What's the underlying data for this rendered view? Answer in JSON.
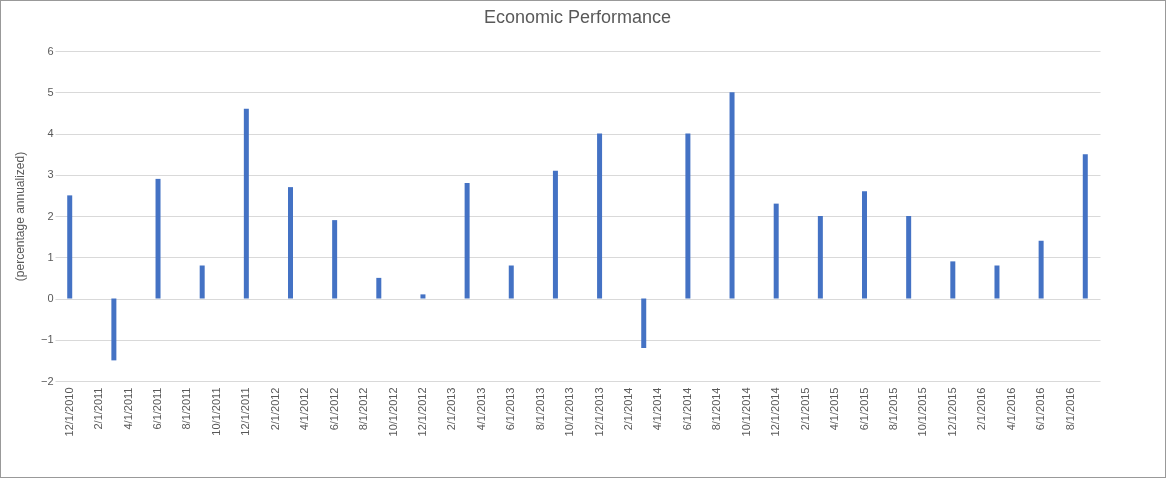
{
  "chart_data": {
    "type": "bar",
    "title": "Economic Performance",
    "ylabel": "(percentage annualized)",
    "categories": [
      "12/1/2010",
      null,
      "2/1/2011",
      null,
      "4/1/2011",
      null,
      "6/1/2011",
      null,
      "8/1/2011",
      null,
      "10/1/2011",
      null,
      "12/1/2011",
      null,
      "2/1/2012",
      null,
      "4/1/2012",
      null,
      "6/1/2012",
      null,
      "8/1/2012",
      null,
      "10/1/2012",
      null,
      "12/1/2012",
      null,
      "2/1/2013",
      null,
      "4/1/2013",
      null,
      "6/1/2013",
      null,
      "8/1/2013",
      null,
      "10/1/2013",
      null,
      "12/1/2013",
      null,
      "2/1/2014",
      null,
      "4/1/2014",
      null,
      "6/1/2014",
      null,
      "8/1/2014",
      null,
      "10/1/2014",
      null,
      "12/1/2014",
      null,
      "2/1/2015",
      null,
      "4/1/2015",
      null,
      "6/1/2015",
      null,
      "8/1/2015",
      null,
      "10/1/2015",
      null,
      "12/1/2015",
      null,
      "2/1/2016",
      null,
      "4/1/2016",
      null,
      "6/1/2016",
      null,
      "8/1/2016",
      null
    ],
    "values": [
      2.5,
      null,
      null,
      -1.5,
      null,
      null,
      2.9,
      null,
      null,
      0.8,
      null,
      null,
      4.6,
      null,
      null,
      2.7,
      null,
      null,
      1.9,
      null,
      null,
      0.5,
      null,
      null,
      0.1,
      null,
      null,
      2.8,
      null,
      null,
      0.8,
      null,
      null,
      3.1,
      null,
      null,
      4.0,
      null,
      null,
      -1.2,
      null,
      null,
      4.0,
      null,
      null,
      5.0,
      null,
      null,
      2.3,
      null,
      null,
      2.0,
      null,
      null,
      2.6,
      null,
      null,
      2.0,
      null,
      null,
      0.9,
      null,
      null,
      0.8,
      null,
      null,
      1.4,
      null,
      null,
      3.5
    ],
    "color": "#4472c4",
    "ylim": [
      -2,
      6
    ],
    "yticks": [
      -2,
      -1,
      0,
      1,
      2,
      3,
      4,
      5,
      6
    ],
    "grid": "y"
  }
}
